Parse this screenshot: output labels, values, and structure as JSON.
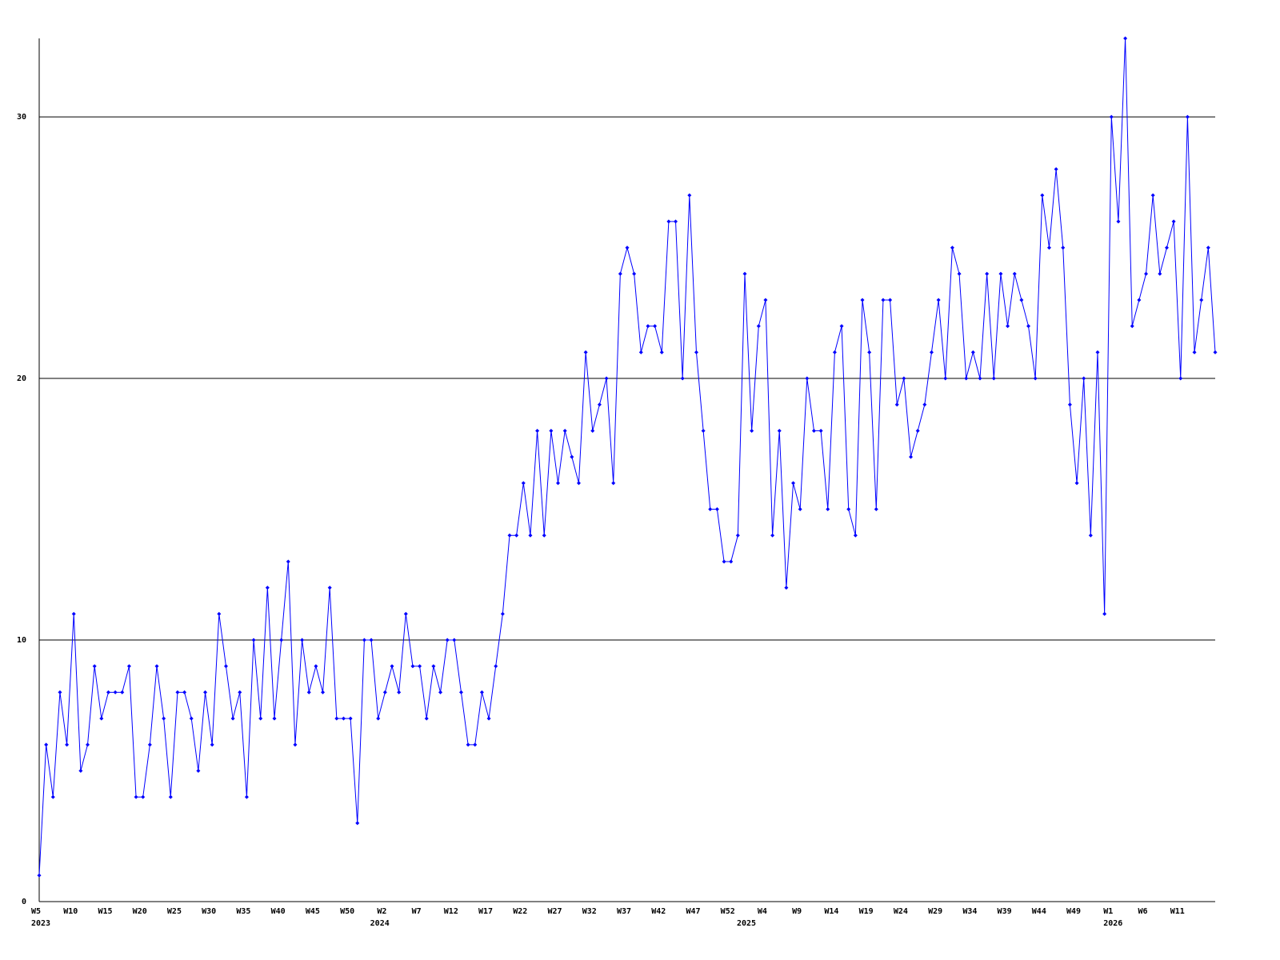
{
  "chart_data": {
    "type": "line",
    "color": "#0000ff",
    "grid": true,
    "ylim": [
      0,
      33
    ],
    "yticks": [
      0,
      10,
      20,
      30
    ],
    "categories": [
      "W5",
      null,
      null,
      null,
      null,
      "W10",
      null,
      null,
      null,
      null,
      "W15",
      null,
      null,
      null,
      null,
      "W20",
      null,
      null,
      null,
      null,
      "W25",
      null,
      null,
      null,
      null,
      "W30",
      null,
      null,
      null,
      null,
      "W35",
      null,
      null,
      null,
      null,
      "W40",
      null,
      null,
      null,
      null,
      "W45",
      null,
      null,
      null,
      null,
      "W50",
      null,
      null,
      null,
      null,
      "W2",
      null,
      null,
      null,
      null,
      "W7",
      null,
      null,
      null,
      null,
      "W12",
      null,
      null,
      null,
      null,
      "W17",
      null,
      null,
      null,
      null,
      "W22",
      null,
      null,
      null,
      null,
      "W27",
      null,
      null,
      null,
      null,
      "W32",
      null,
      null,
      null,
      null,
      "W37",
      null,
      null,
      null,
      null,
      "W42",
      null,
      null,
      null,
      null,
      "W47",
      null,
      null,
      null,
      null,
      "W52",
      null,
      null,
      null,
      null,
      "W4",
      null,
      null,
      null,
      null,
      "W9",
      null,
      null,
      null,
      null,
      "W14",
      null,
      null,
      null,
      null,
      "W19",
      null,
      null,
      null,
      null,
      "W24",
      null,
      null,
      null,
      null,
      "W29",
      null,
      null,
      null,
      null,
      "W34",
      null,
      null,
      null,
      null,
      "W39",
      null,
      null,
      null,
      null,
      "W44",
      null,
      null,
      null,
      null,
      "W49",
      null,
      null,
      null,
      null,
      "W1",
      null,
      null,
      null,
      null,
      "W6",
      null,
      null,
      null,
      null,
      "W11",
      null,
      null,
      null,
      null,
      null
    ],
    "year_labels": [
      "2023",
      null,
      null,
      null,
      null,
      null,
      null,
      null,
      null,
      null,
      null,
      null,
      null,
      null,
      null,
      null,
      null,
      null,
      null,
      null,
      null,
      null,
      null,
      null,
      null,
      null,
      null,
      null,
      null,
      null,
      null,
      null,
      null,
      null,
      null,
      null,
      null,
      null,
      null,
      null,
      null,
      null,
      null,
      null,
      null,
      null,
      null,
      null,
      null,
      "2024",
      null,
      null,
      null,
      null,
      null,
      null,
      null,
      null,
      null,
      null,
      null,
      null,
      null,
      null,
      null,
      null,
      null,
      null,
      null,
      null,
      null,
      null,
      null,
      null,
      null,
      null,
      null,
      null,
      null,
      null,
      null,
      null,
      null,
      null,
      null,
      null,
      null,
      null,
      null,
      null,
      null,
      null,
      null,
      null,
      null,
      null,
      null,
      null,
      null,
      null,
      null,
      null,
      "2025",
      null,
      null,
      null,
      null,
      null,
      null,
      null,
      null,
      null,
      null,
      null,
      null,
      null,
      null,
      null,
      null,
      null,
      null,
      null,
      null,
      null,
      null,
      null,
      null,
      null,
      null,
      null,
      null,
      null,
      null,
      null,
      null,
      null,
      null,
      null,
      null,
      null,
      null,
      null,
      null,
      null,
      null,
      null,
      null,
      null,
      null,
      null,
      null,
      null,
      null,
      null,
      null,
      "2026",
      null,
      null,
      null,
      null,
      null,
      null,
      null,
      null,
      null,
      null,
      null,
      null,
      null,
      null,
      null
    ],
    "values": [
      1,
      6,
      4,
      8,
      6,
      11,
      5,
      6,
      9,
      7,
      8,
      8,
      8,
      9,
      4,
      4,
      6,
      9,
      7,
      4,
      8,
      8,
      7,
      5,
      8,
      6,
      11,
      9,
      7,
      8,
      4,
      10,
      7,
      12,
      7,
      10,
      13,
      6,
      10,
      8,
      9,
      8,
      12,
      7,
      7,
      7,
      3,
      10,
      10,
      7,
      8,
      9,
      8,
      11,
      9,
      9,
      7,
      9,
      8,
      10,
      10,
      8,
      6,
      6,
      8,
      7,
      9,
      11,
      14,
      14,
      16,
      14,
      18,
      14,
      18,
      16,
      18,
      17,
      16,
      21,
      18,
      19,
      20,
      16,
      24,
      25,
      24,
      21,
      22,
      22,
      21,
      26,
      26,
      20,
      27,
      21,
      18,
      15,
      15,
      13,
      13,
      14,
      24,
      18,
      22,
      23,
      14,
      18,
      12,
      16,
      15,
      20,
      18,
      18,
      15,
      21,
      22,
      15,
      14,
      23,
      21,
      15,
      23,
      23,
      19,
      20,
      17,
      18,
      19,
      21,
      23,
      20,
      25,
      24,
      20,
      21,
      20,
      24,
      20,
      24,
      22,
      24,
      23,
      22,
      20,
      27,
      25,
      28,
      25,
      19,
      16,
      20,
      14,
      21,
      11,
      30,
      26,
      33,
      22,
      23,
      24,
      27,
      24,
      25,
      26,
      20,
      30,
      21,
      23,
      25,
      21
    ]
  }
}
